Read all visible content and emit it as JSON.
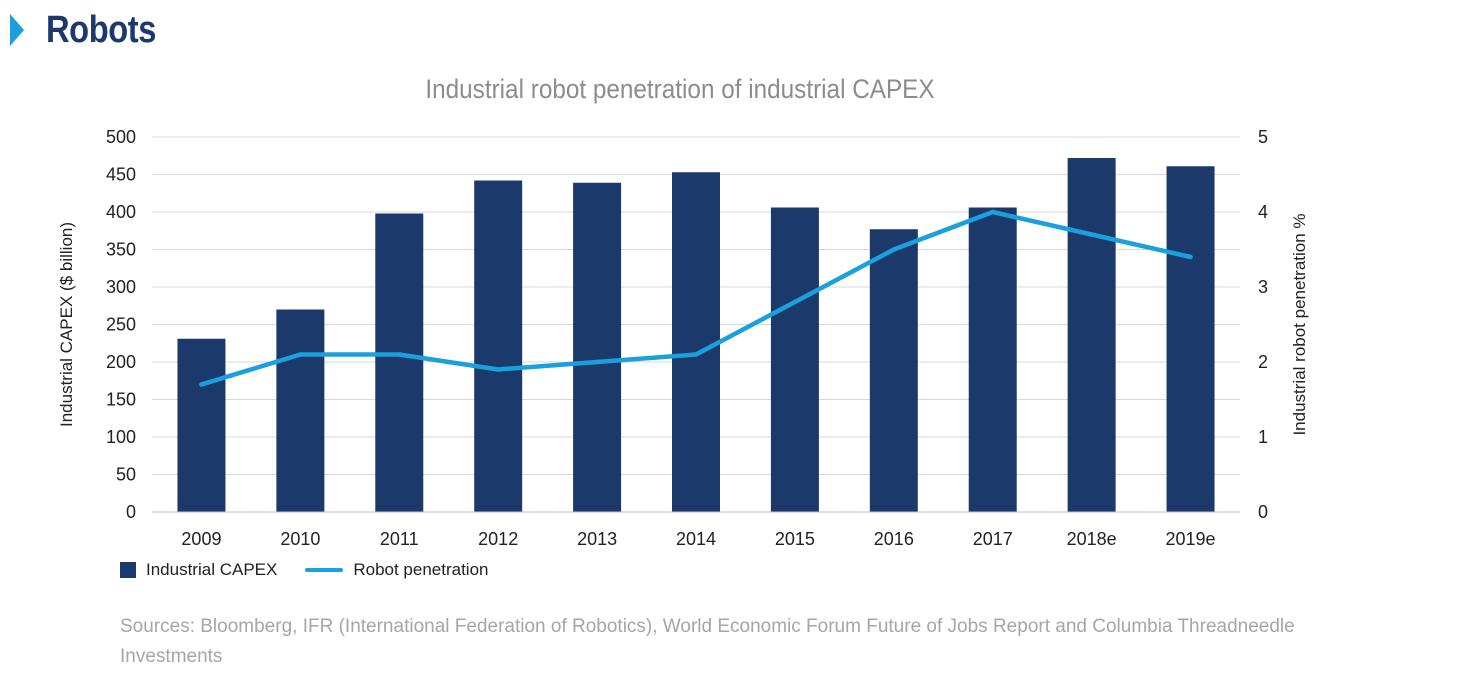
{
  "header": {
    "title": "Robots"
  },
  "colors": {
    "bar": "#1b3a6b",
    "line": "#1aa0dc",
    "accent": "#1aa0dc",
    "grid": "#d9d9d9"
  },
  "legend": {
    "bar_label": "Industrial CAPEX",
    "line_label": "Robot penetration"
  },
  "source": "Sources: Bloomberg, IFR (International Federation of Robotics), World Economic Forum Future of Jobs Report and Columbia Threadneedle Investments",
  "chart_data": {
    "type": "bar",
    "title": "Industrial robot penetration of industrial CAPEX",
    "xlabel": "",
    "categories": [
      "2009",
      "2010",
      "2011",
      "2012",
      "2013",
      "2014",
      "2015",
      "2016",
      "2017",
      "2018e",
      "2019e"
    ],
    "series": [
      {
        "name": "Industrial CAPEX",
        "type": "bar",
        "axis": "left",
        "values": [
          231,
          270,
          398,
          442,
          439,
          453,
          406,
          377,
          406,
          472,
          461
        ]
      },
      {
        "name": "Robot penetration",
        "type": "line",
        "axis": "right",
        "values": [
          1.7,
          2.1,
          2.1,
          1.9,
          2.0,
          2.1,
          2.8,
          3.5,
          4.0,
          3.7,
          3.4
        ]
      }
    ],
    "y_left": {
      "label": "Industrial CAPEX ($ billion)",
      "range": [
        0,
        500
      ],
      "ticks": [
        0,
        50,
        100,
        150,
        200,
        250,
        300,
        350,
        400,
        450,
        500
      ]
    },
    "y_right": {
      "label": "Industrial robot penetration %",
      "range": [
        0,
        5
      ],
      "ticks": [
        0,
        1,
        2,
        3,
        4,
        5
      ]
    },
    "grid": true,
    "legend_position": "bottom-left"
  }
}
